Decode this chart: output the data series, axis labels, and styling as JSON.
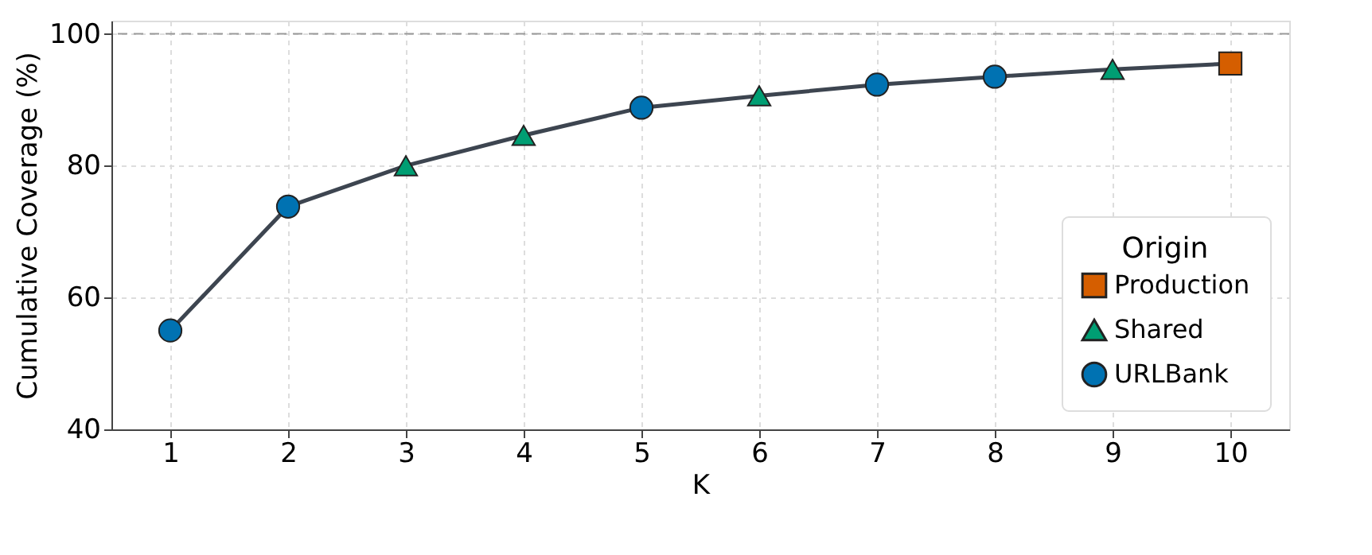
{
  "chart_data": {
    "type": "line",
    "xlabel": "K",
    "ylabel": "Cumulative Coverage (%)",
    "legend_title": "Origin",
    "x": [
      1,
      2,
      3,
      4,
      5,
      6,
      7,
      8,
      9,
      10
    ],
    "series": [
      {
        "color": "#3d4550",
        "marker": "none",
        "values": [
          55,
          73.8,
          80,
          84.6,
          88.8,
          90.6,
          92.3,
          93.5,
          94.6,
          95.5
        ]
      },
      {
        "type": "scatter",
        "name": "Production",
        "color": "#d55e00",
        "marker": "square",
        "x": [
          10
        ],
        "values": [
          95.5
        ]
      },
      {
        "type": "scatter",
        "name": "Shared",
        "color": "#009e73",
        "marker": "triangle",
        "x": [
          3,
          4,
          6,
          9
        ],
        "values": [
          80,
          84.6,
          90.6,
          94.6
        ]
      },
      {
        "type": "scatter",
        "name": "URLBank",
        "color": "#0072b2",
        "marker": "circle",
        "x": [
          1,
          2,
          5,
          7,
          8
        ],
        "values": [
          55,
          73.8,
          88.8,
          92.3,
          93.5
        ]
      }
    ],
    "xlim": [
      0.5,
      10.5
    ],
    "xticks": [
      1,
      2,
      3,
      4,
      5,
      6,
      7,
      8,
      9,
      10
    ],
    "ylim": [
      40,
      102
    ],
    "yticks": [
      40,
      60,
      80,
      100
    ],
    "ref_lines": [
      {
        "axis": "y",
        "value": 100,
        "color": "#999999",
        "line_style": "dashed"
      }
    ],
    "grid": true,
    "legend": "bottom right"
  }
}
